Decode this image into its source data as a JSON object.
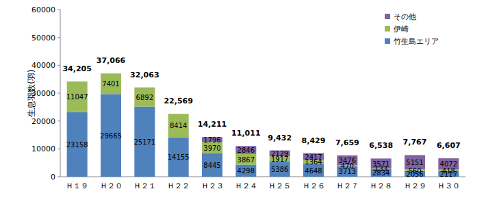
{
  "chart_data": {
    "type": "bar",
    "stacked": true,
    "data_labels": true,
    "legend": "top-right",
    "grid": false,
    "y_label": "生息羽数(羽)",
    "categories": [
      "Ｈ１９",
      "Ｈ２０",
      "Ｈ２１",
      "Ｈ２２",
      "Ｈ２３",
      "Ｈ２４",
      "Ｈ２５",
      "Ｈ２６",
      "Ｈ２７",
      "Ｈ２８",
      "Ｈ２９",
      "Ｈ３０"
    ],
    "series": [
      {
        "name": "竹生島エリア",
        "color": "#4f81bd",
        "values": [
          23158,
          29665,
          25171,
          14155,
          8445,
          4298,
          5386,
          4648,
          3713,
          2834,
          2056,
          2117
        ]
      },
      {
        "name": "伊崎",
        "color": "#9bbb59",
        "values": [
          11047,
          7401,
          6892,
          8414,
          3970,
          3867,
          1917,
          1364,
          470,
          133,
          560,
          418
        ]
      },
      {
        "name": "その他",
        "color": "#8064a2",
        "values": [
          null,
          null,
          null,
          null,
          1796,
          2846,
          2129,
          2417,
          3476,
          3571,
          5151,
          4072
        ]
      }
    ],
    "totals": [
      34205,
      37066,
      32063,
      22569,
      14211,
      11011,
      9432,
      8429,
      7659,
      6538,
      7767,
      6607
    ],
    "total_labels": [
      "34,205",
      "37,066",
      "32,063",
      "22,569",
      "14,211",
      "11,011",
      "9,432",
      "8,429",
      "7,659",
      "6,538",
      "7,767",
      "6,607"
    ],
    "ylim": [
      0,
      60000
    ],
    "yticks": [
      0,
      10000,
      20000,
      30000,
      40000,
      50000,
      60000
    ]
  }
}
